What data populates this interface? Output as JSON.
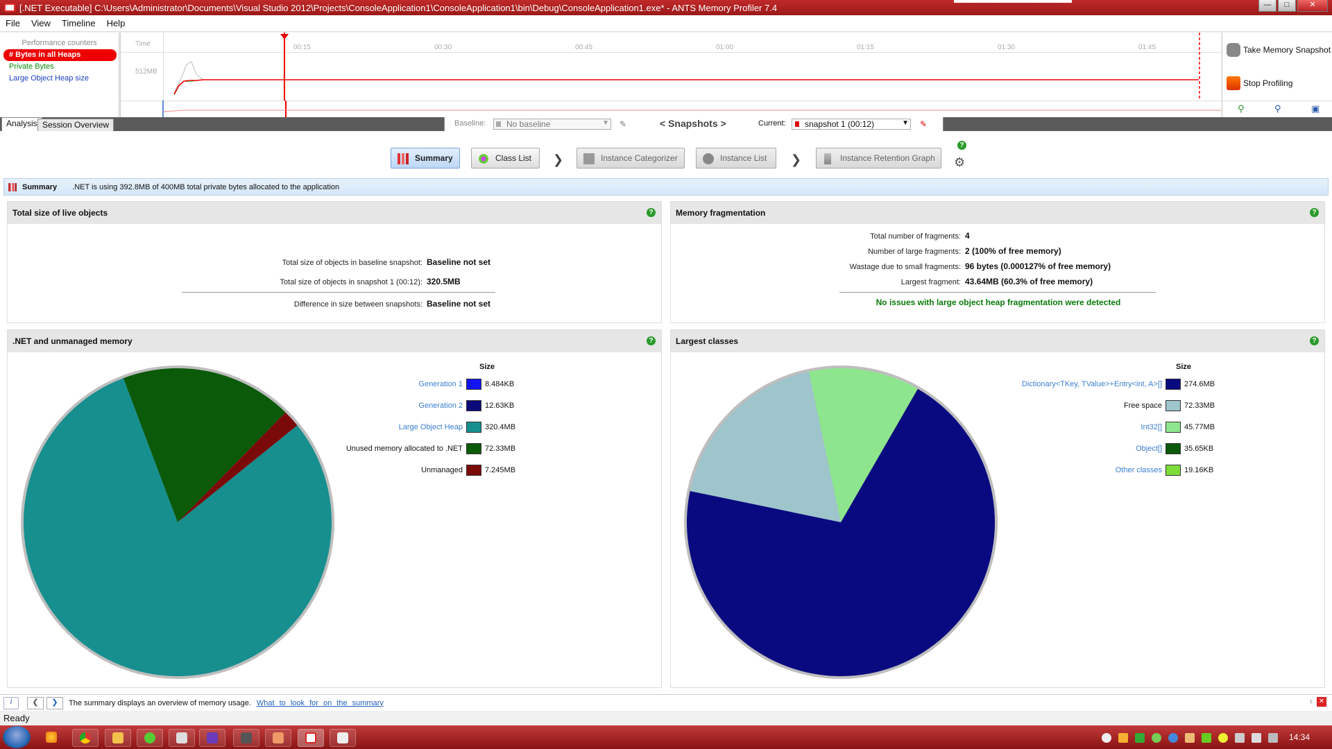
{
  "window": {
    "title": "[.NET Executable] C:\\Users\\Administrator\\Documents\\Visual Studio 2012\\Projects\\ConsoleApplication1\\ConsoleApplication1\\bin\\Debug\\ConsoleApplication1.exe* - ANTS Memory Profiler 7.4"
  },
  "menu": [
    "File",
    "View",
    "Timeline",
    "Help"
  ],
  "perf": {
    "header": "Performance counters",
    "counters": [
      "# Bytes in all Heaps",
      "Private Bytes",
      "Large Object Heap size"
    ],
    "colors": [
      "#e00000",
      "#009900",
      "#1a3fbf"
    ]
  },
  "timeline": {
    "time_label": "Time",
    "ticks": [
      "00:15",
      "00:30",
      "00:45",
      "01:00",
      "01:15",
      "01:30",
      "01:45"
    ],
    "y_label": "512MB"
  },
  "actions": {
    "take_snapshot": "Take Memory Snapshot",
    "stop_profiling": "Stop Profiling"
  },
  "tabs": {
    "analysis": "Analysis",
    "session_overview": "Session Overview"
  },
  "snapshots": {
    "baseline_label": "Baseline:",
    "baseline_value": "No baseline",
    "nav_label": "< Snapshots >",
    "current_label": "Current:",
    "current_value": "snapshot 1 (00:12)"
  },
  "nav": {
    "summary": "Summary",
    "class_list": "Class List",
    "instance_categorizer": "Instance Categorizer",
    "instance_list": "Instance List",
    "instance_retention_graph": "Instance Retention Graph"
  },
  "summary_bar": {
    "title": "Summary",
    "text": ".NET is using 392.8MB of 400MB total private bytes allocated to the application"
  },
  "live_objects": {
    "title": "Total size of live objects",
    "rows": [
      {
        "k": "Total size of objects in baseline snapshot:",
        "v": "Baseline not set"
      },
      {
        "k": "Total size of objects in snapshot 1 (00:12):",
        "v": "320.5MB"
      },
      {
        "k": "Difference in size between snapshots:",
        "v": "Baseline not set"
      }
    ]
  },
  "fragmentation": {
    "title": "Memory fragmentation",
    "rows": [
      {
        "k": "Total number of fragments:",
        "v": "4"
      },
      {
        "k": "Number of large fragments:",
        "v": "2 (100% of free memory)"
      },
      {
        "k": "Wastage due to small fragments:",
        "v": "96 bytes (0.000127% of free memory)"
      },
      {
        "k": "Largest fragment:",
        "v": "43.64MB (60.3% of free memory)"
      }
    ],
    "ok_message": "No issues with large object heap fragmentation were detected"
  },
  "chart_data": [
    {
      "type": "pie",
      "title": ".NET and unmanaged memory",
      "legend_header": "Size",
      "categories": [
        "Generation 1",
        "Generation 2",
        "Large Object Heap",
        "Unused memory allocated to .NET",
        "Unmanaged"
      ],
      "values_mb": [
        0.0083,
        0.0123,
        320.4,
        72.33,
        7.245
      ],
      "labels": [
        "8.484KB",
        "12.63KB",
        "320.4MB",
        "72.33MB",
        "7.245MB"
      ],
      "colors": [
        "#1414f0",
        "#0a0a7a",
        "#178f8f",
        "#0a5a0a",
        "#7a0a0a"
      ],
      "links": [
        true,
        true,
        true,
        false,
        false
      ]
    },
    {
      "type": "pie",
      "title": "Largest classes",
      "legend_header": "Size",
      "categories": [
        "Dictionary<TKey, TValue>+Entry<int, A>[]",
        "Free space",
        "Int32[]",
        "Object[]",
        "Other classes"
      ],
      "values_mb": [
        274.6,
        72.33,
        45.77,
        0.0348,
        0.0187
      ],
      "labels": [
        "274.6MB",
        "72.33MB",
        "45.77MB",
        "35.65KB",
        "19.16KB"
      ],
      "colors": [
        "#0a0a80",
        "#9ec4cc",
        "#8de68d",
        "#0a5a0a",
        "#7ddc3a"
      ],
      "links": [
        true,
        false,
        true,
        true,
        true
      ]
    }
  ],
  "infobar": {
    "text": "The summary displays an overview of memory usage.",
    "link": "What to look for on the summary"
  },
  "status": "Ready",
  "clock": "14:34"
}
